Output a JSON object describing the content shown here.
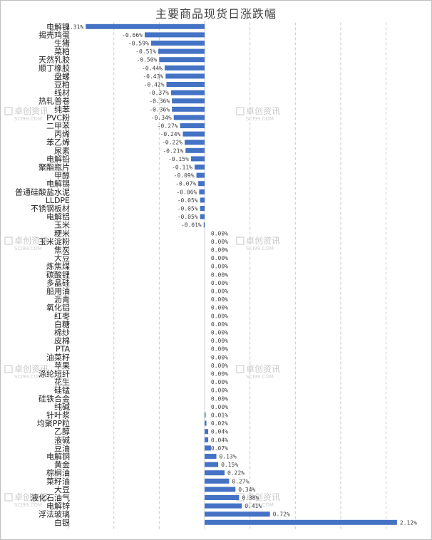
{
  "chart_data": {
    "type": "bar",
    "orientation": "horizontal",
    "title": "主要商品现货日涨跌幅",
    "xlim": [
      -1.5,
      2.25
    ],
    "grid": true,
    "bar_color": "#4472c4",
    "categories": [
      "电解镍",
      "揭壳鸡蛋",
      "生猪",
      "菜粕",
      "天然乳胶",
      "顺丁橡胶",
      "盘螺",
      "豆粕",
      "线材",
      "热轧普卷",
      "纯苯",
      "PVC粉",
      "二甲苯",
      "丙烯",
      "苯乙烯",
      "尿素",
      "电解铅",
      "聚酯瓶片",
      "甲醇",
      "电解锡",
      "普通硅酸盐水泥",
      "LLDPE",
      "不锈钢板材",
      "电解铝",
      "玉米",
      "粳米",
      "玉米淀粉",
      "焦炭",
      "大豆",
      "炼焦煤",
      "碳酸锂",
      "多晶硅",
      "船用油",
      "沥青",
      "氧化铝",
      "红枣",
      "白糖",
      "棉纱",
      "皮棉",
      "PTA",
      "油菜籽",
      "苹果",
      "涤纶短纤",
      "花生",
      "硅锰",
      "硅铁合金",
      "纯碱",
      "针叶浆",
      "均聚PP粒",
      "乙醇",
      "液碱",
      "豆油",
      "电解铜",
      "黄金",
      "棕榈油",
      "菜籽油",
      "大豆",
      "液化石油气",
      "电解锌",
      "浮法玻璃",
      "白银"
    ],
    "values": [
      -1.31,
      -0.66,
      -0.59,
      -0.51,
      -0.5,
      -0.44,
      -0.43,
      -0.42,
      -0.37,
      -0.36,
      -0.36,
      -0.34,
      -0.27,
      -0.24,
      -0.22,
      -0.21,
      -0.15,
      -0.11,
      -0.09,
      -0.07,
      -0.06,
      -0.05,
      -0.05,
      -0.05,
      -0.01,
      0.0,
      0.0,
      0.0,
      0.0,
      0.0,
      0.0,
      0.0,
      0.0,
      0.0,
      0.0,
      0.0,
      0.0,
      0.0,
      0.0,
      0.0,
      0.0,
      0.0,
      0.0,
      0.0,
      0.0,
      0.0,
      0.0,
      0.01,
      0.02,
      0.04,
      0.04,
      0.07,
      0.13,
      0.15,
      0.22,
      0.27,
      0.34,
      0.38,
      0.41,
      0.72,
      2.12
    ],
    "data_labels": [
      "-1.31%",
      "-0.66%",
      "-0.59%",
      "-0.51%",
      "-0.50%",
      "-0.44%",
      "-0.43%",
      "-0.42%",
      "-0.37%",
      "-0.36%",
      "-0.36%",
      "-0.34%",
      "-0.27%",
      "-0.24%",
      "-0.22%",
      "-0.21%",
      "-0.15%",
      "-0.11%",
      "-0.09%",
      "-0.07%",
      "-0.06%",
      "-0.05%",
      "-0.05%",
      "-0.05%",
      "-0.01%",
      "0.00%",
      "0.00%",
      "0.00%",
      "0.00%",
      "0.00%",
      "0.00%",
      "0.00%",
      "0.00%",
      "0.00%",
      "0.00%",
      "0.00%",
      "0.00%",
      "0.00%",
      "0.00%",
      "0.00%",
      "0.00%",
      "0.00%",
      "0.00%",
      "0.00%",
      "0.00%",
      "0.00%",
      "0.00%",
      "0.01%",
      "0.02%",
      "0.04%",
      "0.04%",
      "0.07%",
      "0.13%",
      "0.15%",
      "0.22%",
      "0.27%",
      "0.34%",
      "0.38%",
      "0.41%",
      "0.72%",
      "2.12%"
    ]
  },
  "watermark": {
    "cn": "卓创资讯",
    "en": "SCI99.COM"
  }
}
